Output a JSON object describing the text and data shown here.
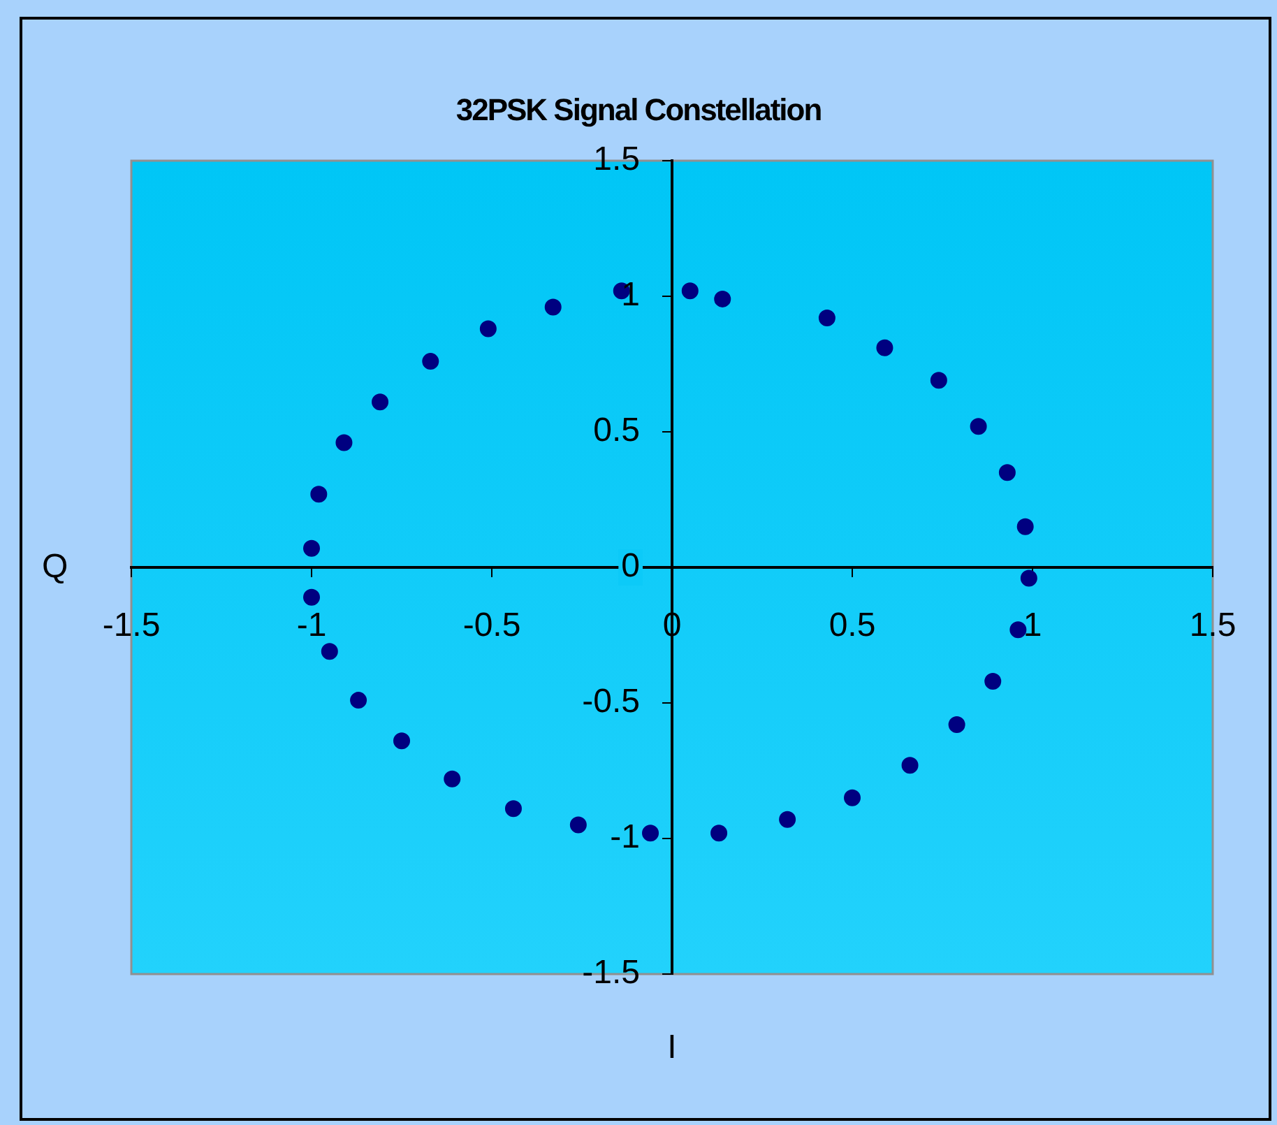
{
  "chart_data": {
    "type": "scatter",
    "title": "32PSK Signal Constellation",
    "xlabel": "I",
    "ylabel": "Q",
    "x": [
      0.05,
      0.14,
      0.43,
      0.59,
      0.74,
      0.85,
      0.93,
      0.98,
      0.99,
      0.96,
      0.89,
      0.79,
      0.66,
      0.5,
      0.32,
      0.13,
      -0.06,
      -0.26,
      -0.44,
      -0.61,
      -0.75,
      -0.87,
      -0.95,
      -1.0,
      -1.0,
      -0.98,
      -0.91,
      -0.81,
      -0.67,
      -0.51,
      -0.33,
      -0.14
    ],
    "values": [
      1.02,
      0.99,
      0.92,
      0.81,
      0.69,
      0.52,
      0.35,
      0.15,
      -0.04,
      -0.23,
      -0.42,
      -0.58,
      -0.73,
      -0.85,
      -0.93,
      -0.98,
      -0.98,
      -0.95,
      -0.89,
      -0.78,
      -0.64,
      -0.49,
      -0.31,
      -0.11,
      0.07,
      0.27,
      0.46,
      0.61,
      0.76,
      0.88,
      0.96,
      1.02
    ],
    "color": "#000080",
    "marker": "circle",
    "grid": false,
    "legend": false,
    "xlim": [
      -1.5,
      1.5
    ],
    "ylim": [
      -1.5,
      1.5
    ],
    "xticks": [
      -1.5,
      -1,
      -0.5,
      0,
      0.5,
      1,
      1.5
    ],
    "yticks": [
      -1.5,
      -1,
      -0.5,
      0,
      0.5,
      1,
      1.5
    ]
  }
}
